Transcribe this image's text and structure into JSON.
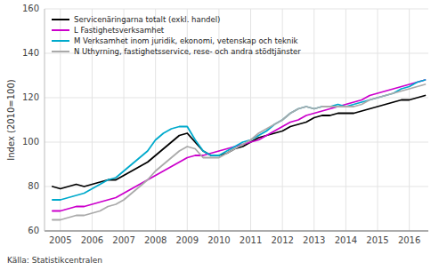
{
  "chart_data": {
    "type": "line",
    "ylabel": "Index (2010=100)",
    "annotations": [
      "Källa: Statistikcentralen"
    ],
    "xlim": [
      2004.5,
      2016.6
    ],
    "xticks": [
      2005,
      2006,
      2007,
      2008,
      2009,
      2010,
      2011,
      2012,
      2013,
      2014,
      2015,
      2016
    ],
    "ylim": [
      60,
      160
    ],
    "yticks": [
      60,
      80,
      100,
      120,
      140,
      160
    ],
    "grid": true,
    "legend": "upper left",
    "x": [
      2004.75,
      2005.0,
      2005.25,
      2005.5,
      2005.75,
      2006.0,
      2006.25,
      2006.5,
      2006.75,
      2007.0,
      2007.25,
      2007.5,
      2007.75,
      2008.0,
      2008.25,
      2008.5,
      2008.75,
      2009.0,
      2009.25,
      2009.5,
      2009.75,
      2010.0,
      2010.25,
      2010.5,
      2010.75,
      2011.0,
      2011.25,
      2011.5,
      2011.75,
      2012.0,
      2012.25,
      2012.5,
      2012.75,
      2013.0,
      2013.25,
      2013.5,
      2013.75,
      2014.0,
      2014.25,
      2014.5,
      2014.75,
      2015.0,
      2015.25,
      2015.5,
      2015.75,
      2016.0,
      2016.25,
      2016.5
    ],
    "series": [
      {
        "name": "Servicenäringarna totalt (exkl. handel)",
        "color": "#000000",
        "values": [
          80,
          79,
          80,
          81,
          80,
          81,
          82,
          83,
          83,
          85,
          87,
          89,
          91,
          94,
          97,
          100,
          103,
          104,
          100,
          96,
          94,
          94,
          95,
          97,
          98,
          100,
          102,
          103,
          104,
          105,
          107,
          108,
          109,
          111,
          112,
          112,
          113,
          113,
          113,
          114,
          115,
          116,
          117,
          118,
          119,
          119,
          120,
          121
        ]
      },
      {
        "name": "L Fastighetsverksamhet",
        "color": "#cc00cc",
        "values": [
          69,
          69,
          70,
          71,
          71,
          72,
          73,
          74,
          75,
          77,
          79,
          81,
          83,
          85,
          87,
          89,
          91,
          93,
          94,
          94,
          95,
          96,
          97,
          98,
          99,
          100,
          101,
          103,
          105,
          107,
          109,
          110,
          112,
          113,
          114,
          115,
          116,
          117,
          118,
          119,
          121,
          122,
          123,
          124,
          125,
          126,
          127,
          128
        ]
      },
      {
        "name": "M Verksamhet inom juridik, ekonomi, vetenskap och teknik",
        "color": "#00aacc",
        "values": [
          74,
          74,
          75,
          76,
          77,
          79,
          81,
          83,
          84,
          87,
          90,
          93,
          96,
          101,
          104,
          106,
          107,
          107,
          101,
          96,
          94,
          94,
          96,
          98,
          100,
          101,
          103,
          105,
          108,
          110,
          113,
          115,
          116,
          115,
          116,
          116,
          117,
          116,
          117,
          118,
          119,
          120,
          121,
          122,
          124,
          125,
          127,
          128
        ]
      },
      {
        "name": "N Uthyrning, fastighetsservice, rese- och andra stödtjänster",
        "color": "#aaaaaa",
        "values": [
          65,
          65,
          66,
          67,
          67,
          68,
          69,
          71,
          72,
          74,
          77,
          80,
          83,
          87,
          90,
          93,
          96,
          98,
          97,
          93,
          93,
          93,
          95,
          97,
          99,
          101,
          104,
          106,
          108,
          110,
          113,
          115,
          116,
          115,
          116,
          116,
          116,
          116,
          116,
          117,
          119,
          120,
          121,
          122,
          123,
          124,
          125,
          126
        ]
      }
    ]
  }
}
